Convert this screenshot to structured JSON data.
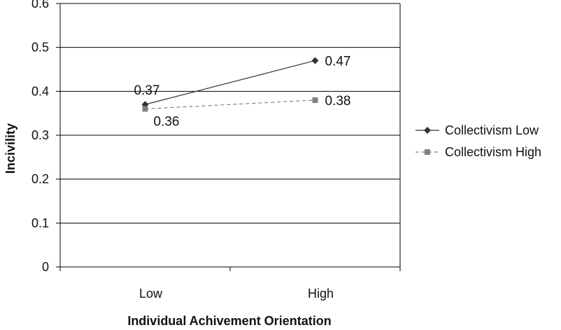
{
  "chart_data": {
    "type": "line",
    "categories": [
      "Low",
      "High"
    ],
    "series": [
      {
        "name": "Collectivism Low",
        "values": [
          0.37,
          0.47
        ],
        "labels": [
          "0.37",
          "0.47"
        ],
        "color": "#333333",
        "marker": "diamond",
        "dash": "solid"
      },
      {
        "name": "Collectivism High",
        "values": [
          0.36,
          0.38
        ],
        "labels": [
          "0.36",
          "0.38"
        ],
        "color": "#808080",
        "marker": "square",
        "dash": "dashed"
      }
    ],
    "xlabel": "Individual Achivement Orientation",
    "ylabel": "Incivility",
    "ylim": [
      0,
      0.6
    ],
    "yticks": [
      "0",
      "0.1",
      "0.2",
      "0.3",
      "0.4",
      "0.5",
      "0.6"
    ],
    "grid": true,
    "legend_position": "right"
  }
}
